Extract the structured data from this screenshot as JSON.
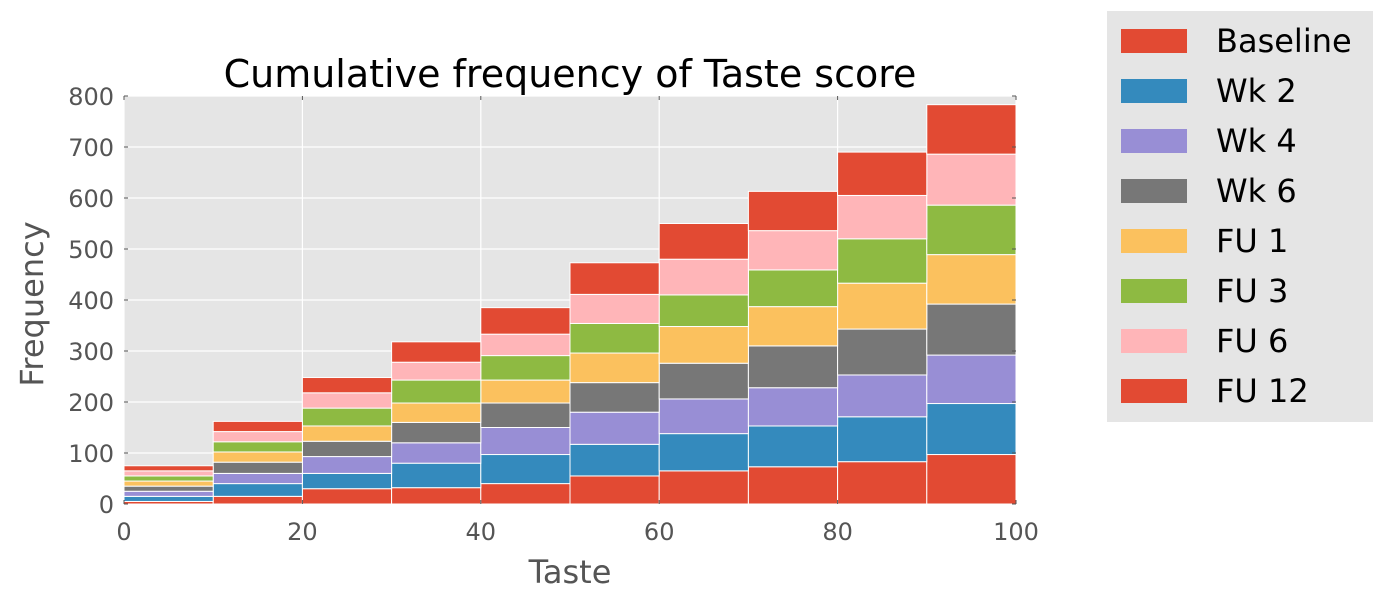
{
  "chart_data": {
    "type": "bar",
    "stacked": true,
    "title": "Cumulative frequency of Taste score",
    "xlabel": "Taste",
    "ylabel": "Frequency",
    "xlim": [
      0,
      100
    ],
    "ylim": [
      0,
      800
    ],
    "grid": true,
    "legend_position": "outside-right",
    "x_ticks": [
      "0",
      "20",
      "40",
      "60",
      "80",
      "100"
    ],
    "y_ticks": [
      "0",
      "100",
      "200",
      "300",
      "400",
      "500",
      "600",
      "700",
      "800"
    ],
    "bin_edges": [
      0,
      10,
      20,
      30,
      40,
      50,
      60,
      70,
      80,
      90,
      100
    ],
    "background_color": "#e5e5e5",
    "series": [
      {
        "name": "Baseline",
        "color": "#e24a33",
        "values": [
          5,
          15,
          30,
          32,
          40,
          55,
          65,
          73,
          83,
          97
        ]
      },
      {
        "name": "Wk 2",
        "color": "#348abd",
        "values": [
          10,
          25,
          30,
          48,
          57,
          62,
          73,
          80,
          88,
          100
        ]
      },
      {
        "name": "Wk 4",
        "color": "#988ed5",
        "values": [
          10,
          20,
          33,
          40,
          53,
          63,
          68,
          75,
          82,
          95
        ]
      },
      {
        "name": "Wk 6",
        "color": "#777777",
        "values": [
          10,
          22,
          30,
          40,
          48,
          58,
          70,
          82,
          90,
          100
        ]
      },
      {
        "name": "FU 1",
        "color": "#fbc15e",
        "values": [
          10,
          20,
          30,
          38,
          45,
          58,
          72,
          77,
          90,
          97
        ]
      },
      {
        "name": "FU 3",
        "color": "#8eba42",
        "values": [
          10,
          20,
          35,
          45,
          48,
          58,
          62,
          72,
          87,
          97
        ]
      },
      {
        "name": "FU 6",
        "color": "#ffb5b8",
        "values": [
          10,
          20,
          30,
          35,
          42,
          57,
          70,
          77,
          85,
          100
        ]
      },
      {
        "name": "FU 12",
        "color": "#e24a33",
        "values": [
          10,
          20,
          30,
          40,
          52,
          62,
          70,
          77,
          85,
          97
        ]
      }
    ]
  }
}
